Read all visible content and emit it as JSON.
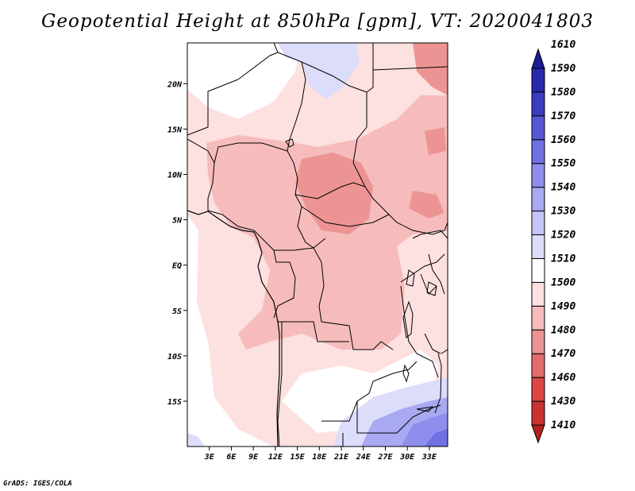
{
  "title": "Geopotential Height at 850hPa [gpm], VT: 2020041803",
  "credit": "GrADS: IGES/COLA",
  "map": {
    "lat_labels": [
      {
        "label": "20N",
        "lat": 20
      },
      {
        "label": "15N",
        "lat": 15
      },
      {
        "label": "10N",
        "lat": 10
      },
      {
        "label": "5N",
        "lat": 5
      },
      {
        "label": "EQ",
        "lat": 0
      },
      {
        "label": "5S",
        "lat": -5
      },
      {
        "label": "10S",
        "lat": -10
      },
      {
        "label": "15S",
        "lat": -15
      }
    ],
    "lon_labels": [
      {
        "label": "3E",
        "lon": 3
      },
      {
        "label": "6E",
        "lon": 6
      },
      {
        "label": "9E",
        "lon": 9
      },
      {
        "label": "12E",
        "lon": 12
      },
      {
        "label": "15E",
        "lon": 15
      },
      {
        "label": "18E",
        "lon": 18
      },
      {
        "label": "21E",
        "lon": 21
      },
      {
        "label": "24E",
        "lon": 24
      },
      {
        "label": "27E",
        "lon": 27
      },
      {
        "label": "30E",
        "lon": 30
      },
      {
        "label": "33E",
        "lon": 33
      }
    ]
  },
  "colorbar": {
    "levels": [
      "1410",
      "1430",
      "1460",
      "1470",
      "1480",
      "1490",
      "1500",
      "1510",
      "1520",
      "1530",
      "1540",
      "1550",
      "1560",
      "1570",
      "1580",
      "1590",
      "1610"
    ],
    "colors": [
      "#b42020",
      "#c83232",
      "#dc4646",
      "#e26b6b",
      "#ec9494",
      "#f6bcbc",
      "#fde0e0",
      "#ffffff",
      "#dcdcfb",
      "#c4c4f7",
      "#a9a9f2",
      "#8e8eec",
      "#7070e2",
      "#5656d4",
      "#3c3cc0",
      "#2828ac",
      "#1c1c96"
    ]
  }
}
